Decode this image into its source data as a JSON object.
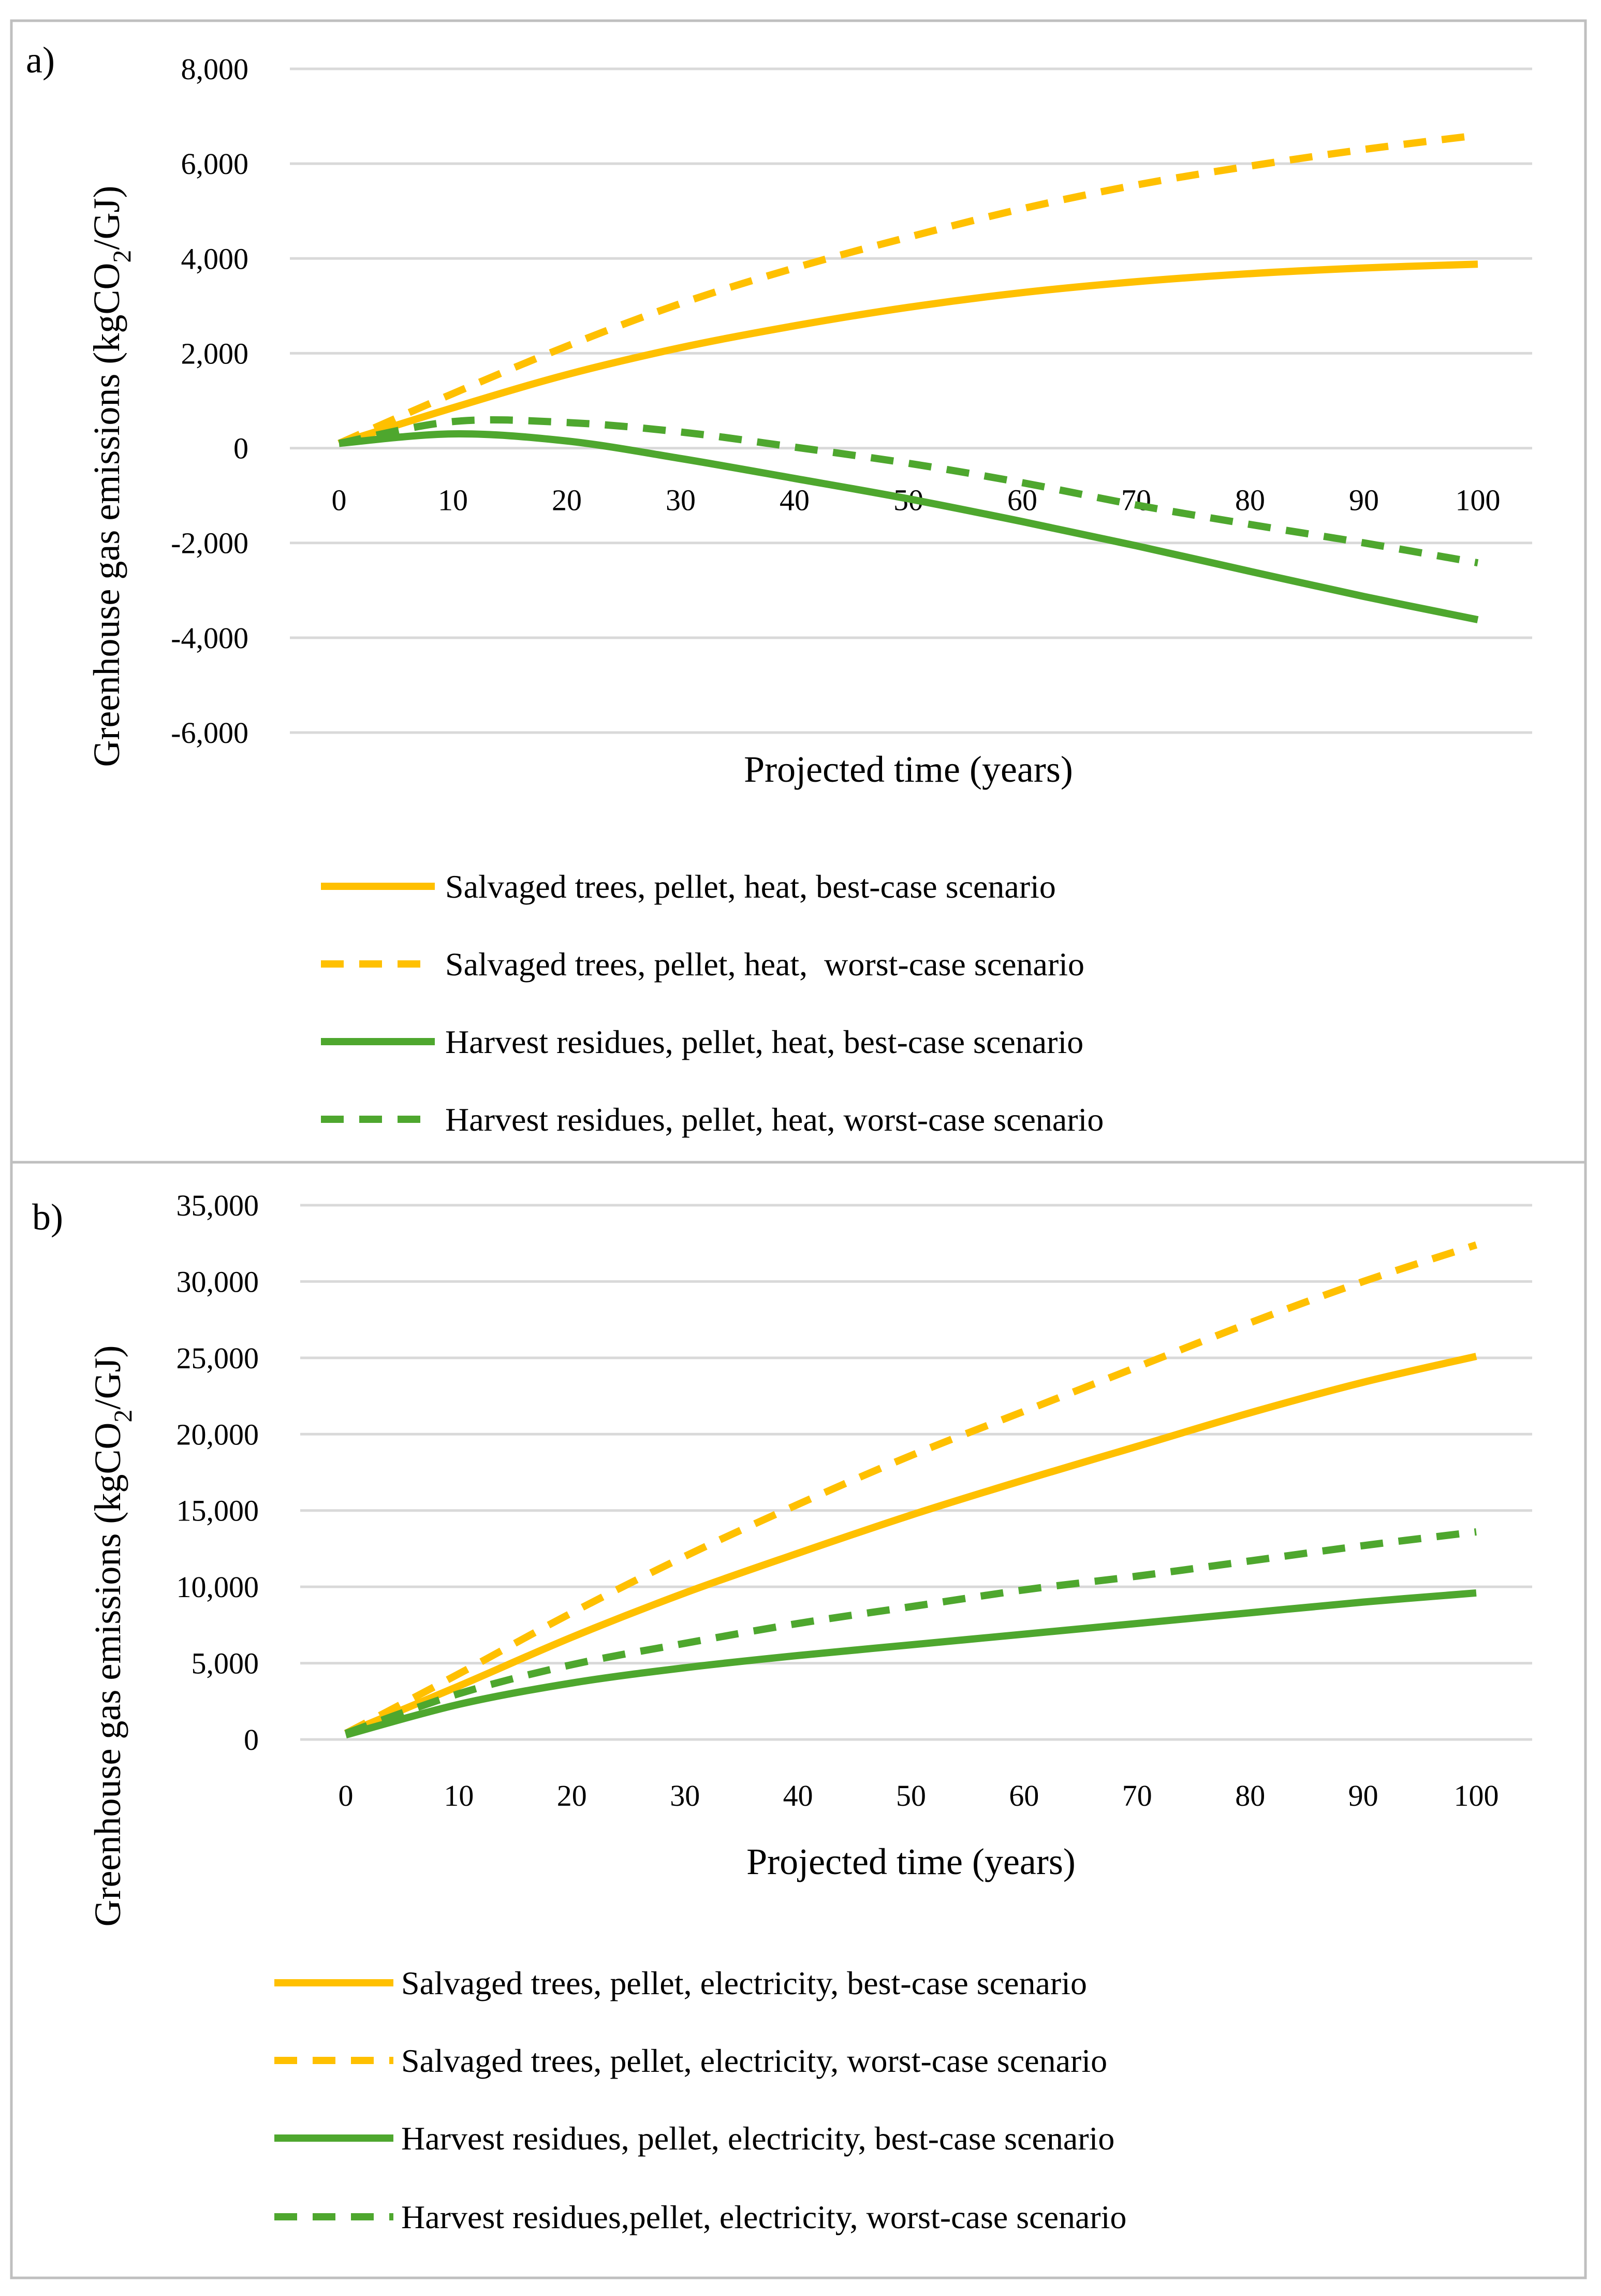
{
  "colors": {
    "gold": "#FFC000",
    "green": "#4EA72E",
    "grid": "#d9d9d9",
    "frame": "#bfbfbf"
  },
  "chart_data": [
    {
      "type": "line",
      "panel_label": "a)",
      "title": "",
      "xlabel": "Projected time (years)",
      "ylabel_main": "Greenhouse gas emissions (kgCO",
      "ylabel_sub": "2",
      "ylabel_end": "/GJ)",
      "x": [
        0,
        10,
        20,
        30,
        40,
        50,
        60,
        70,
        80,
        90,
        100
      ],
      "x_tick_labels": [
        "0",
        "10",
        "20",
        "30",
        "40",
        "50",
        "60",
        "70",
        "80",
        "90",
        "100"
      ],
      "ylim": [
        -6000,
        8000
      ],
      "y_ticks": [
        -6000,
        -4000,
        -2000,
        0,
        2000,
        4000,
        6000,
        8000
      ],
      "y_tick_labels": [
        "-6,000",
        "-4,000",
        "-2,000",
        "0",
        "2,000",
        "4,000",
        "6,000",
        "8,000"
      ],
      "grid": true,
      "legend_position": "bottom",
      "series": [
        {
          "name": "Salvaged trees, pellet, heat, best-case scenario",
          "color": "#FFC000",
          "style": "solid",
          "values": [
            100,
            850,
            1550,
            2120,
            2580,
            2970,
            3280,
            3510,
            3680,
            3800,
            3880
          ]
        },
        {
          "name": "Salvaged trees, pellet, heat,  worst-case scenario",
          "color": "#FFC000",
          "style": "dashed",
          "values": [
            100,
            1150,
            2150,
            3050,
            3800,
            4450,
            5050,
            5550,
            5950,
            6300,
            6600
          ]
        },
        {
          "name": "Harvest residues, pellet, heat, best-case scenario",
          "color": "#4EA72E",
          "style": "solid",
          "values": [
            100,
            300,
            150,
            -220,
            -640,
            -1070,
            -1550,
            -2060,
            -2600,
            -3130,
            -3620
          ]
        },
        {
          "name": "Harvest residues, pellet, heat, worst-case scenario",
          "color": "#4EA72E",
          "style": "dashed",
          "values": [
            100,
            560,
            540,
            340,
            20,
            -320,
            -730,
            -1200,
            -1610,
            -2000,
            -2420
          ]
        }
      ]
    },
    {
      "type": "line",
      "panel_label": "b)",
      "title": "",
      "xlabel": "Projected time (years)",
      "ylabel_main": "Greenhouse gas emissions (kgCO",
      "ylabel_sub": "2",
      "ylabel_end": "/GJ)",
      "x": [
        0,
        10,
        20,
        30,
        40,
        50,
        60,
        70,
        80,
        90,
        100
      ],
      "x_tick_labels": [
        "0",
        "10",
        "20",
        "30",
        "40",
        "50",
        "60",
        "70",
        "80",
        "90",
        "100"
      ],
      "ylim": [
        0,
        35000
      ],
      "y_ticks": [
        0,
        5000,
        10000,
        15000,
        20000,
        25000,
        30000,
        35000
      ],
      "y_tick_labels": [
        "0",
        "5,000",
        "10,000",
        "15,000",
        "20,000",
        "25,000",
        "30,000",
        "35,000"
      ],
      "grid": true,
      "legend_position": "bottom",
      "series": [
        {
          "name": "Salvaged trees, pellet, electricity, best-case scenario",
          "color": "#FFC000",
          "style": "solid",
          "values": [
            400,
            3500,
            6700,
            9600,
            12200,
            14700,
            17000,
            19200,
            21400,
            23400,
            25100
          ]
        },
        {
          "name": "Salvaged trees, pellet, electricity, worst-case scenario",
          "color": "#FFC000",
          "style": "dashed",
          "values": [
            400,
            4300,
            8300,
            12000,
            15400,
            18600,
            21500,
            24400,
            27300,
            30000,
            32400
          ]
        },
        {
          "name": "Harvest residues, pellet, electricity, best-case scenario",
          "color": "#4EA72E",
          "style": "solid",
          "values": [
            300,
            2300,
            3700,
            4700,
            5500,
            6200,
            6900,
            7600,
            8300,
            9000,
            9600
          ]
        },
        {
          "name": "Harvest residues,pellet, electricity, worst-case scenario",
          "color": "#4EA72E",
          "style": "dashed",
          "values": [
            400,
            3000,
            4900,
            6300,
            7600,
            8700,
            9800,
            10700,
            11700,
            12700,
            13600
          ]
        }
      ]
    }
  ]
}
